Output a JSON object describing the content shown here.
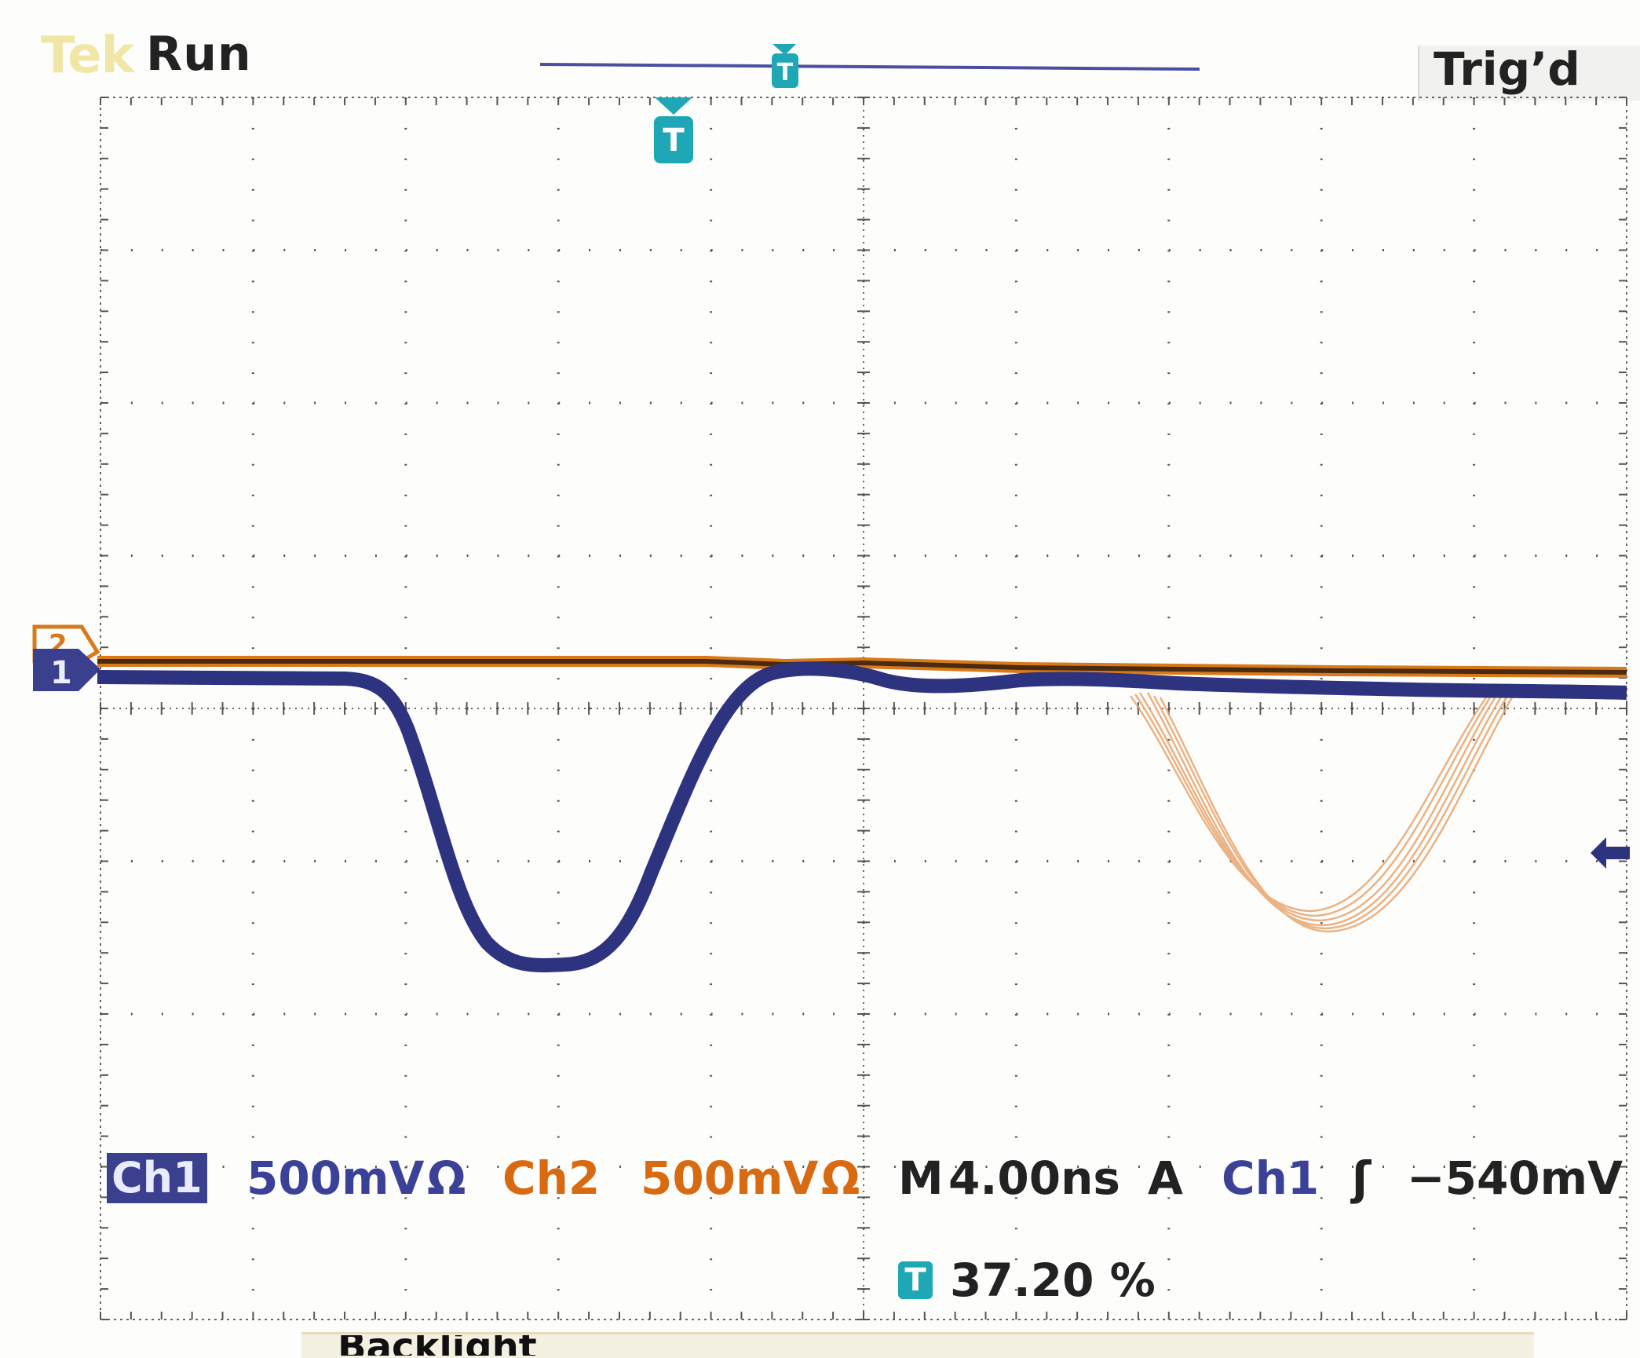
{
  "header": {
    "brand": "Tek",
    "run_status": "Run",
    "trigger_status": "Trig’d"
  },
  "markers": {
    "channel1_ground": "1",
    "channel2_ground": "2",
    "trigger": "T"
  },
  "readout": {
    "ch1_label": "Ch1",
    "ch1_scale": "500mV",
    "ch1_coupling_symbol": "Ω",
    "ch2_label": "Ch2",
    "ch2_scale": "500mV",
    "ch2_coupling_symbol": "Ω",
    "timebase_prefix": "M",
    "timebase": "4.00ns",
    "trigger_mode": "A",
    "trigger_source": "Ch1",
    "trigger_slope_symbol": "ʃ",
    "trigger_level": "−540mV",
    "trigger_position_icon": "T",
    "trigger_position": "37.20 %"
  },
  "softkey": {
    "backlight_label": "Backlight"
  },
  "colors": {
    "ch1": "#2e3380",
    "ch2": "#d8791a",
    "trigger": "#1fa7b5",
    "graticule": "#555555"
  }
}
